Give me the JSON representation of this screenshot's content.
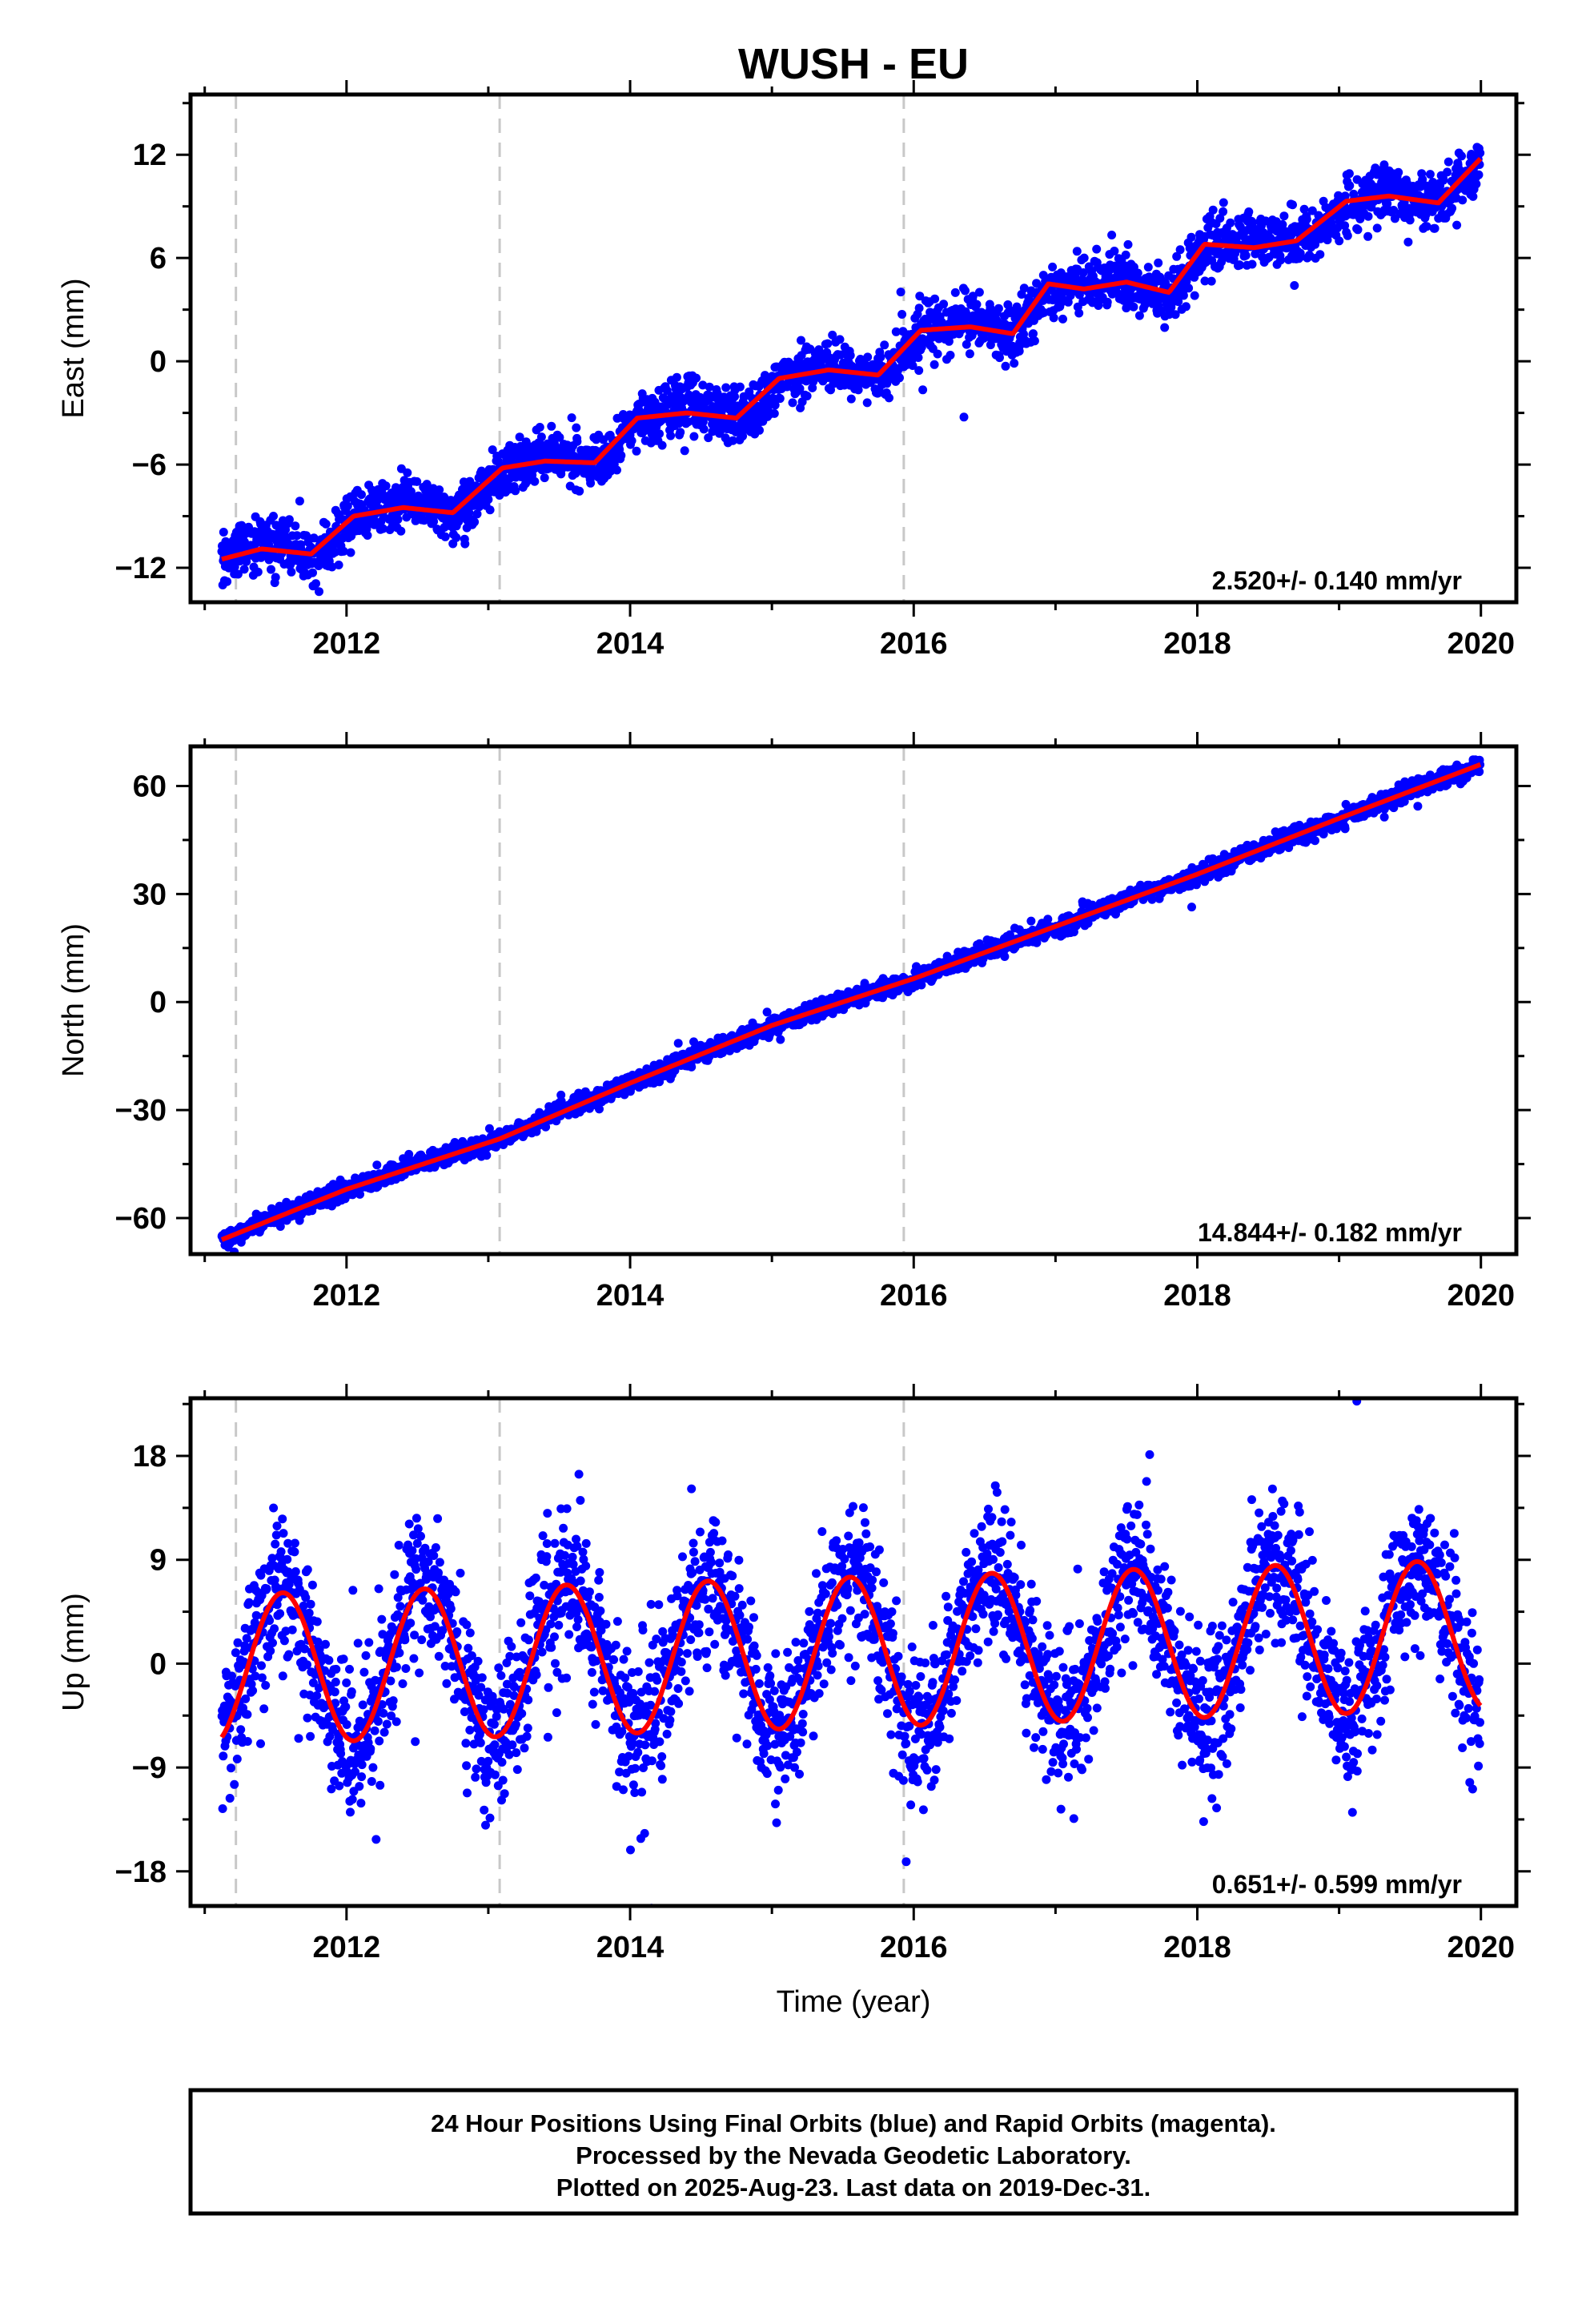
{
  "chart_data": {
    "type": "scatter",
    "title": "WUSH - EU",
    "xlabel": "Time (year)",
    "xlim": [
      2010.9,
      2020.25
    ],
    "x_ticks": [
      2012,
      2014,
      2016,
      2018,
      2020
    ],
    "x_tick_labels": [
      "2012",
      "2014",
      "2016",
      "2018",
      "2020"
    ],
    "equipment_change_lines": [
      2011.22,
      2013.08,
      2015.93
    ],
    "data_start": 2011.12,
    "data_end": 2019.997,
    "colors": {
      "points": "#0000ff",
      "model": "#ff0000",
      "change_lines": "#c8c8c8",
      "frame": "#000000"
    },
    "grid": false,
    "legend": "none",
    "panels": [
      {
        "name": "east",
        "ylabel": "East (mm)",
        "ylim": [
          -14,
          15.5
        ],
        "y_ticks": [
          -12,
          -6,
          0,
          6,
          12
        ],
        "y_tick_labels": [
          "−12",
          "−6",
          "0",
          "6",
          "12"
        ],
        "rate_label": "2.520+/- 0.140 mm/yr",
        "points_per_year": 330,
        "noise_sd": 0.75,
        "seasonal": {
          "amp": 0.9,
          "phase_peak": 0.4
        },
        "model_nodes": {
          "x": [
            2011.12,
            2011.4,
            2011.75,
            2012.05,
            2012.4,
            2012.75,
            2013.1,
            2013.4,
            2013.75,
            2014.05,
            2014.4,
            2014.75,
            2015.05,
            2015.4,
            2015.75,
            2016.05,
            2016.4,
            2016.7,
            2016.95,
            2017.2,
            2017.5,
            2017.8,
            2018.05,
            2018.4,
            2018.7,
            2019.05,
            2019.35,
            2019.7,
            2020.0
          ],
          "y": [
            -11.5,
            -10.9,
            -11.2,
            -9.0,
            -8.5,
            -8.8,
            -6.2,
            -5.8,
            -5.9,
            -3.3,
            -3.0,
            -3.3,
            -1.0,
            -0.5,
            -0.8,
            1.8,
            2.0,
            1.6,
            4.5,
            4.2,
            4.6,
            4.0,
            6.8,
            6.6,
            7.0,
            9.3,
            9.6,
            9.2,
            11.8
          ]
        }
      },
      {
        "name": "north",
        "ylabel": "North (mm)",
        "ylim": [
          -70,
          71
        ],
        "y_ticks": [
          -60,
          -30,
          0,
          30,
          60
        ],
        "y_tick_labels": [
          "−60",
          "−30",
          "0",
          "30",
          "60"
        ],
        "rate_label": "14.844+/- 0.182 mm/yr",
        "points_per_year": 330,
        "noise_sd": 1.2,
        "seasonal": {
          "amp": 0.8,
          "phase_peak": 0.5
        },
        "model_nodes": {
          "x": [
            2011.12,
            2012.0,
            2013.08,
            2014.0,
            2015.0,
            2016.0,
            2017.0,
            2018.0,
            2019.0,
            2020.0
          ],
          "y": [
            -66.0,
            -52.0,
            -38.0,
            -22.5,
            -6.5,
            6.5,
            21.0,
            35.5,
            51.0,
            66.0
          ]
        }
      },
      {
        "name": "up",
        "ylabel": "Up (mm)",
        "ylim": [
          -21,
          23
        ],
        "y_ticks": [
          -18,
          -9,
          0,
          9,
          18
        ],
        "y_tick_labels": [
          "−18",
          "−9",
          "0",
          "9",
          "18"
        ],
        "rate_label": "0.651+/- 0.599 mm/yr",
        "points_per_year": 330,
        "noise_sd": 3.2,
        "seasonal": {
          "amp": 6.5,
          "phase_peak": 0.55
        },
        "model_nodes": {
          "x": [
            2011.12,
            2020.0
          ],
          "y": [
            -0.5,
            2.5
          ]
        }
      }
    ]
  },
  "footer": {
    "line1": "24 Hour Positions Using Final Orbits (blue) and Rapid Orbits (magenta).",
    "line2": "Processed by the Nevada Geodetic Laboratory.",
    "line3": "Plotted on 2025-Aug-23. Last data on 2019-Dec-31."
  }
}
